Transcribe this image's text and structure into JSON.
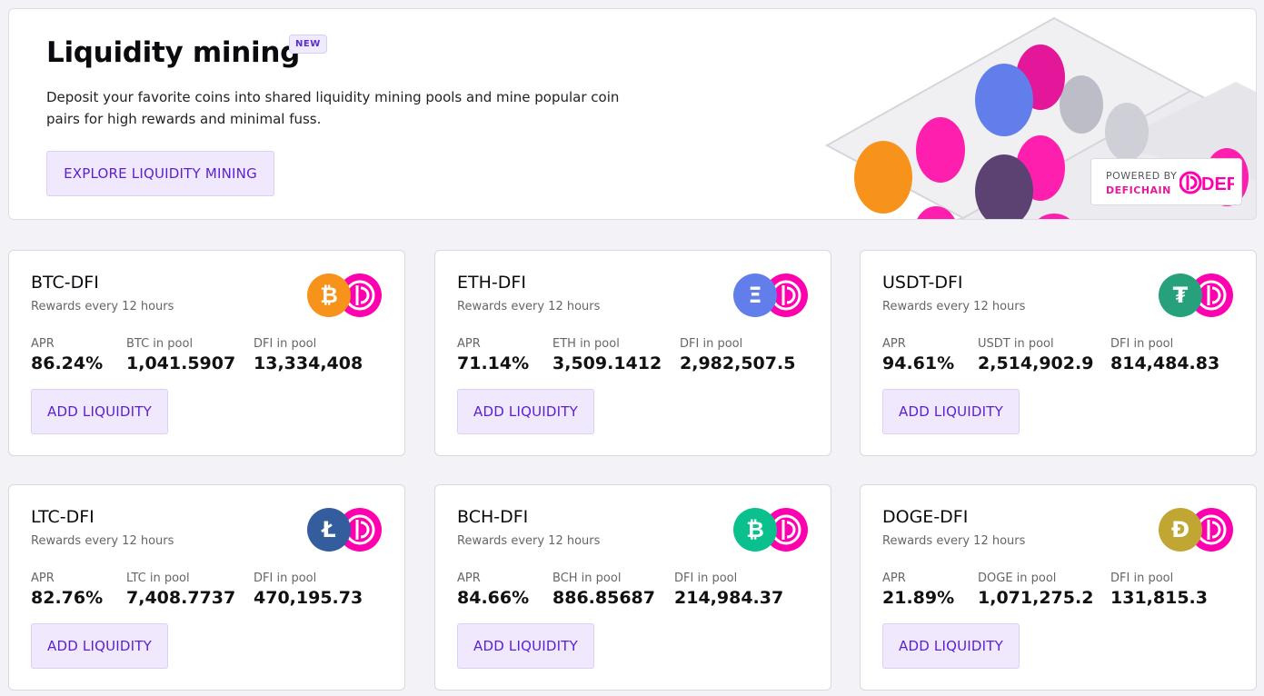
{
  "hero": {
    "title": "Liquidity mining",
    "badge": "NEW",
    "description": "Deposit your favorite coins into shared liquidity mining pools and mine popular coin pairs for high rewards and minimal fuss.",
    "button_label": "EXPLORE LIQUIDITY MINING",
    "powered_by": "POWERED BY",
    "powered_name": "DEFICHAIN",
    "logo_text": "DEFI"
  },
  "pools": [
    {
      "pair": "BTC-DFI",
      "rewards": "Rewards every 12 hours",
      "apr_label": "APR",
      "apr": "86.24%",
      "coin_label": "BTC in pool",
      "coin_amount": "1,041.5907",
      "dfi_label": "DFI in pool",
      "dfi_amount": "13,334,408",
      "button": "ADD LIQUIDITY",
      "icon": "bitcoin-icon",
      "color": "#f7931a",
      "symbol": "₿"
    },
    {
      "pair": "ETH-DFI",
      "rewards": "Rewards every 12 hours",
      "apr_label": "APR",
      "apr": "71.14%",
      "coin_label": "ETH in pool",
      "coin_amount": "3,509.1412",
      "dfi_label": "DFI in pool",
      "dfi_amount": "2,982,507.5",
      "button": "ADD LIQUIDITY",
      "icon": "ethereum-icon",
      "color": "#627eea",
      "symbol": "Ξ"
    },
    {
      "pair": "USDT-DFI",
      "rewards": "Rewards every 12 hours",
      "apr_label": "APR",
      "apr": "94.61%",
      "coin_label": "USDT in pool",
      "coin_amount": "2,514,902.9",
      "dfi_label": "DFI in pool",
      "dfi_amount": "814,484.83",
      "button": "ADD LIQUIDITY",
      "icon": "tether-icon",
      "color": "#26a17b",
      "symbol": "₮"
    },
    {
      "pair": "LTC-DFI",
      "rewards": "Rewards every 12 hours",
      "apr_label": "APR",
      "apr": "82.76%",
      "coin_label": "LTC in pool",
      "coin_amount": "7,408.7737",
      "dfi_label": "DFI in pool",
      "dfi_amount": "470,195.73",
      "button": "ADD LIQUIDITY",
      "icon": "litecoin-icon",
      "color": "#345d9d",
      "symbol": "Ł"
    },
    {
      "pair": "BCH-DFI",
      "rewards": "Rewards every 12 hours",
      "apr_label": "APR",
      "apr": "84.66%",
      "coin_label": "BCH in pool",
      "coin_amount": "886.85687",
      "dfi_label": "DFI in pool",
      "dfi_amount": "214,984.37",
      "button": "ADD LIQUIDITY",
      "icon": "bitcoin-cash-icon",
      "color": "#0ac18e",
      "symbol": "₿"
    },
    {
      "pair": "DOGE-DFI",
      "rewards": "Rewards every 12 hours",
      "apr_label": "APR",
      "apr": "21.89%",
      "coin_label": "DOGE in pool",
      "coin_amount": "1,071,275.2",
      "dfi_label": "DFI in pool",
      "dfi_amount": "131,815.3",
      "button": "ADD LIQUIDITY",
      "icon": "dogecoin-icon",
      "color": "#c2a633",
      "symbol": "Ð"
    }
  ],
  "colors": {
    "accent": "#5a1fd1",
    "dfi_pink": "#ff00af"
  }
}
